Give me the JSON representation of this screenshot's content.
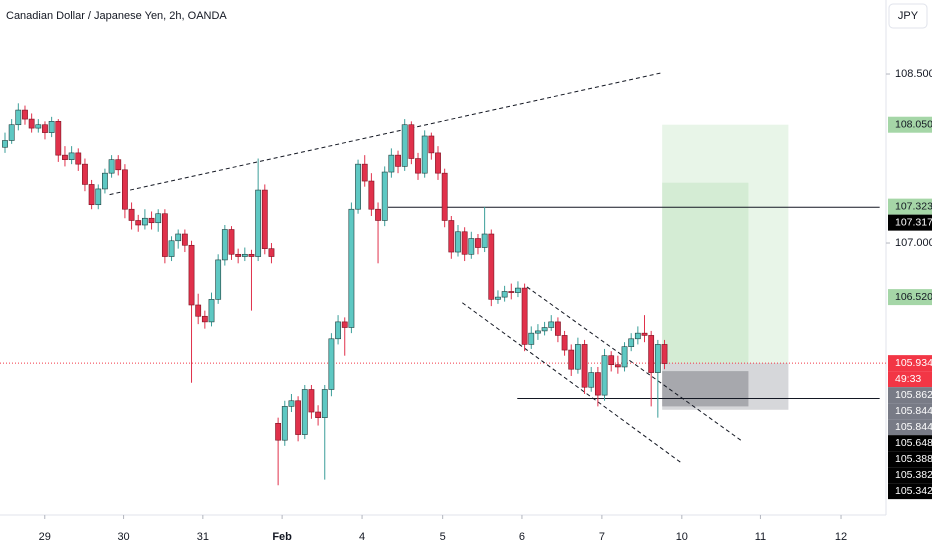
{
  "chart_data": {
    "type": "candlestick",
    "title": "Canadian Dollar / Japanese Yen, 2h, OANDA",
    "currency": "JPY",
    "xlim": [
      -0.75,
      131.35
    ],
    "ylim": [
      104.586,
      109.157
    ],
    "grid": false,
    "up_color": "#5ec8c3",
    "down_color": "#e0314b",
    "xticks": [
      {
        "value": 5.97,
        "label": "29"
      },
      {
        "value": 17.8,
        "label": "30"
      },
      {
        "value": 29.7,
        "label": "31"
      },
      {
        "value": 41.6,
        "label": "Feb"
      },
      {
        "value": 53.6,
        "label": "4"
      },
      {
        "value": 65.7,
        "label": "5"
      },
      {
        "value": 77.6,
        "label": "6"
      },
      {
        "value": 89.6,
        "label": "7"
      },
      {
        "value": 101.6,
        "label": "10"
      },
      {
        "value": 113.4,
        "label": "11"
      },
      {
        "value": 125.5,
        "label": "12"
      }
    ],
    "yticks": [
      {
        "value": 108.5,
        "label": "108.500"
      },
      {
        "value": 107.0,
        "label": "107.000"
      }
    ],
    "candles": [
      [
        107.85,
        107.98,
        107.8,
        107.91
      ],
      [
        107.91,
        108.1,
        107.88,
        108.05
      ],
      [
        108.05,
        108.24,
        108.0,
        108.18
      ],
      [
        108.18,
        108.22,
        108.05,
        108.1
      ],
      [
        108.1,
        108.15,
        107.98,
        108.02
      ],
      [
        108.02,
        108.1,
        107.98,
        108.05
      ],
      [
        108.05,
        108.08,
        107.92,
        107.98
      ],
      [
        107.98,
        108.12,
        107.94,
        108.08
      ],
      [
        108.08,
        108.1,
        107.72,
        107.78
      ],
      [
        107.78,
        107.86,
        107.68,
        107.74
      ],
      [
        107.74,
        107.86,
        107.7,
        107.8
      ],
      [
        107.8,
        107.84,
        107.64,
        107.7
      ],
      [
        107.7,
        107.75,
        107.46,
        107.52
      ],
      [
        107.52,
        107.56,
        107.3,
        107.34
      ],
      [
        107.34,
        107.52,
        107.3,
        107.48
      ],
      [
        107.48,
        107.66,
        107.44,
        107.62
      ],
      [
        107.62,
        107.78,
        107.58,
        107.74
      ],
      [
        107.74,
        107.78,
        107.6,
        107.65
      ],
      [
        107.65,
        107.7,
        107.22,
        107.3
      ],
      [
        107.3,
        107.36,
        107.12,
        107.2
      ],
      [
        107.2,
        107.25,
        107.1,
        107.16
      ],
      [
        107.16,
        107.3,
        107.12,
        107.22
      ],
      [
        107.22,
        107.28,
        107.12,
        107.18
      ],
      [
        107.18,
        107.3,
        107.1,
        107.26
      ],
      [
        107.26,
        107.3,
        106.82,
        106.88
      ],
      [
        106.88,
        107.06,
        106.84,
        107.02
      ],
      [
        107.02,
        107.12,
        106.95,
        107.08
      ],
      [
        107.08,
        107.12,
        106.92,
        106.98
      ],
      [
        106.98,
        107.02,
        105.76,
        106.45
      ],
      [
        106.45,
        106.55,
        106.28,
        106.35
      ],
      [
        106.35,
        106.4,
        106.24,
        106.3
      ],
      [
        106.3,
        106.56,
        106.26,
        106.5
      ],
      [
        106.5,
        106.9,
        106.46,
        106.85
      ],
      [
        106.85,
        107.16,
        106.8,
        107.12
      ],
      [
        107.12,
        107.15,
        106.85,
        106.9
      ],
      [
        106.9,
        106.95,
        106.82,
        106.88
      ],
      [
        106.88,
        106.96,
        106.84,
        106.9
      ],
      [
        106.9,
        106.94,
        106.4,
        106.88
      ],
      [
        106.88,
        107.75,
        106.84,
        107.47
      ],
      [
        107.47,
        107.52,
        106.9,
        106.95
      ],
      [
        106.95,
        107.0,
        106.82,
        106.88
      ],
      [
        105.4,
        105.45,
        104.85,
        105.25
      ],
      [
        105.25,
        105.6,
        105.2,
        105.55
      ],
      [
        105.55,
        105.66,
        105.5,
        105.6
      ],
      [
        105.6,
        105.64,
        105.24,
        105.3
      ],
      [
        105.3,
        105.74,
        105.26,
        105.7
      ],
      [
        105.7,
        105.74,
        105.44,
        105.5
      ],
      [
        105.5,
        105.56,
        105.38,
        105.45
      ],
      [
        105.45,
        105.74,
        104.9,
        105.7
      ],
      [
        105.7,
        106.2,
        105.64,
        106.15
      ],
      [
        106.15,
        106.36,
        106.1,
        106.3
      ],
      [
        106.3,
        106.34,
        106.0,
        106.25
      ],
      [
        106.25,
        107.36,
        106.2,
        107.3
      ],
      [
        107.3,
        107.74,
        107.26,
        107.7
      ],
      [
        107.7,
        107.78,
        107.5,
        107.55
      ],
      [
        107.55,
        107.62,
        107.24,
        107.3
      ],
      [
        107.3,
        107.36,
        106.82,
        107.2
      ],
      [
        107.2,
        107.68,
        107.15,
        107.63
      ],
      [
        107.63,
        107.84,
        107.58,
        107.78
      ],
      [
        107.78,
        107.82,
        107.62,
        107.68
      ],
      [
        107.68,
        108.1,
        107.64,
        108.05
      ],
      [
        108.05,
        108.08,
        107.7,
        107.75
      ],
      [
        107.75,
        107.8,
        107.56,
        107.62
      ],
      [
        107.62,
        108.0,
        107.58,
        107.95
      ],
      [
        107.95,
        107.98,
        107.74,
        107.8
      ],
      [
        107.8,
        107.86,
        107.56,
        107.62
      ],
      [
        107.62,
        107.66,
        107.14,
        107.2
      ],
      [
        107.2,
        107.24,
        106.86,
        106.92
      ],
      [
        106.92,
        107.16,
        106.88,
        107.1
      ],
      [
        107.1,
        107.14,
        106.84,
        106.9
      ],
      [
        106.9,
        107.1,
        106.86,
        107.04
      ],
      [
        107.04,
        107.08,
        106.9,
        106.96
      ],
      [
        106.96,
        107.32,
        106.92,
        107.08
      ],
      [
        107.08,
        107.12,
        106.44,
        106.5
      ],
      [
        106.5,
        106.58,
        106.46,
        106.52
      ],
      [
        106.52,
        106.62,
        106.48,
        106.57
      ],
      [
        106.57,
        106.64,
        106.5,
        106.56
      ],
      [
        106.56,
        106.66,
        106.52,
        106.6
      ],
      [
        106.6,
        106.64,
        106.04,
        106.1
      ],
      [
        106.1,
        106.26,
        106.06,
        106.2
      ],
      [
        106.2,
        106.28,
        106.14,
        106.22
      ],
      [
        106.22,
        106.3,
        106.18,
        106.25
      ],
      [
        106.25,
        106.36,
        106.22,
        106.3
      ],
      [
        106.3,
        106.34,
        106.12,
        106.18
      ],
      [
        106.18,
        106.22,
        106.0,
        106.05
      ],
      [
        106.05,
        106.1,
        105.82,
        105.88
      ],
      [
        105.88,
        106.16,
        105.84,
        106.1
      ],
      [
        106.1,
        106.14,
        105.66,
        105.72
      ],
      [
        105.72,
        105.9,
        105.68,
        105.85
      ],
      [
        105.85,
        105.9,
        105.55,
        105.65
      ],
      [
        105.65,
        106.06,
        105.6,
        106.0
      ],
      [
        106.0,
        106.04,
        105.86,
        105.92
      ],
      [
        105.92,
        106.0,
        105.84,
        105.9
      ],
      [
        105.9,
        106.12,
        105.86,
        106.08
      ],
      [
        106.08,
        106.2,
        106.04,
        106.15
      ],
      [
        106.15,
        106.26,
        106.1,
        106.2
      ],
      [
        106.2,
        106.36,
        106.12,
        106.18
      ],
      [
        106.18,
        106.22,
        105.55,
        105.85
      ],
      [
        105.85,
        106.14,
        105.45,
        106.1
      ],
      [
        106.1,
        106.14,
        105.88,
        105.93
      ]
    ],
    "trendlines": [
      {
        "x": [
          15.7,
          98.5
        ],
        "y": [
          107.43,
          108.51
        ],
        "style": "dashed"
      },
      {
        "x": [
          78.36,
          110.45
        ],
        "y": [
          106.61,
          105.25
        ],
        "style": "dashed"
      },
      {
        "x": [
          68.65,
          101.5
        ],
        "y": [
          106.47,
          105.05
        ],
        "style": "dashed"
      },
      {
        "x": [
          57.5,
          131.3
        ],
        "y": [
          107.317,
          107.317
        ],
        "style": "solid"
      },
      {
        "x": [
          76.9,
          131.3
        ],
        "y": [
          105.62,
          105.62
        ],
        "style": "solid"
      }
    ],
    "position": {
      "x": [
        98.65,
        117.6
      ],
      "target": 108.05,
      "entry": 105.934,
      "stop": 105.52,
      "inner_x": 111.6,
      "inner_stop": 105.55
    },
    "price_labels": [
      {
        "value": 108.05,
        "label": "108.050",
        "color": "#a5d6a7"
      },
      {
        "value": 107.323,
        "label": "107.323",
        "color": "#a5d6a7"
      },
      {
        "value": 107.317,
        "label": "107.317",
        "color": "#000000"
      },
      {
        "value": 106.52,
        "label": "106.520",
        "color": "#a5d6a7"
      },
      {
        "value": 105.934,
        "label": "105.934",
        "color": "#f23645"
      },
      {
        "value": 105.862,
        "label": "105.862",
        "color": "#787b86"
      },
      {
        "value": 105.844,
        "label": "105.844",
        "color": "#787b86"
      },
      {
        "value": 105.844,
        "label": "105.844",
        "color": "#787b86"
      },
      {
        "value": 105.648,
        "label": "105.648",
        "color": "#000000"
      },
      {
        "value": 105.388,
        "label": "105.388",
        "color": "#000000"
      },
      {
        "value": 105.382,
        "label": "105.382",
        "color": "#000000"
      },
      {
        "value": 105.342,
        "label": "105.342",
        "color": "#000000"
      }
    ],
    "countdown": "49:33"
  }
}
